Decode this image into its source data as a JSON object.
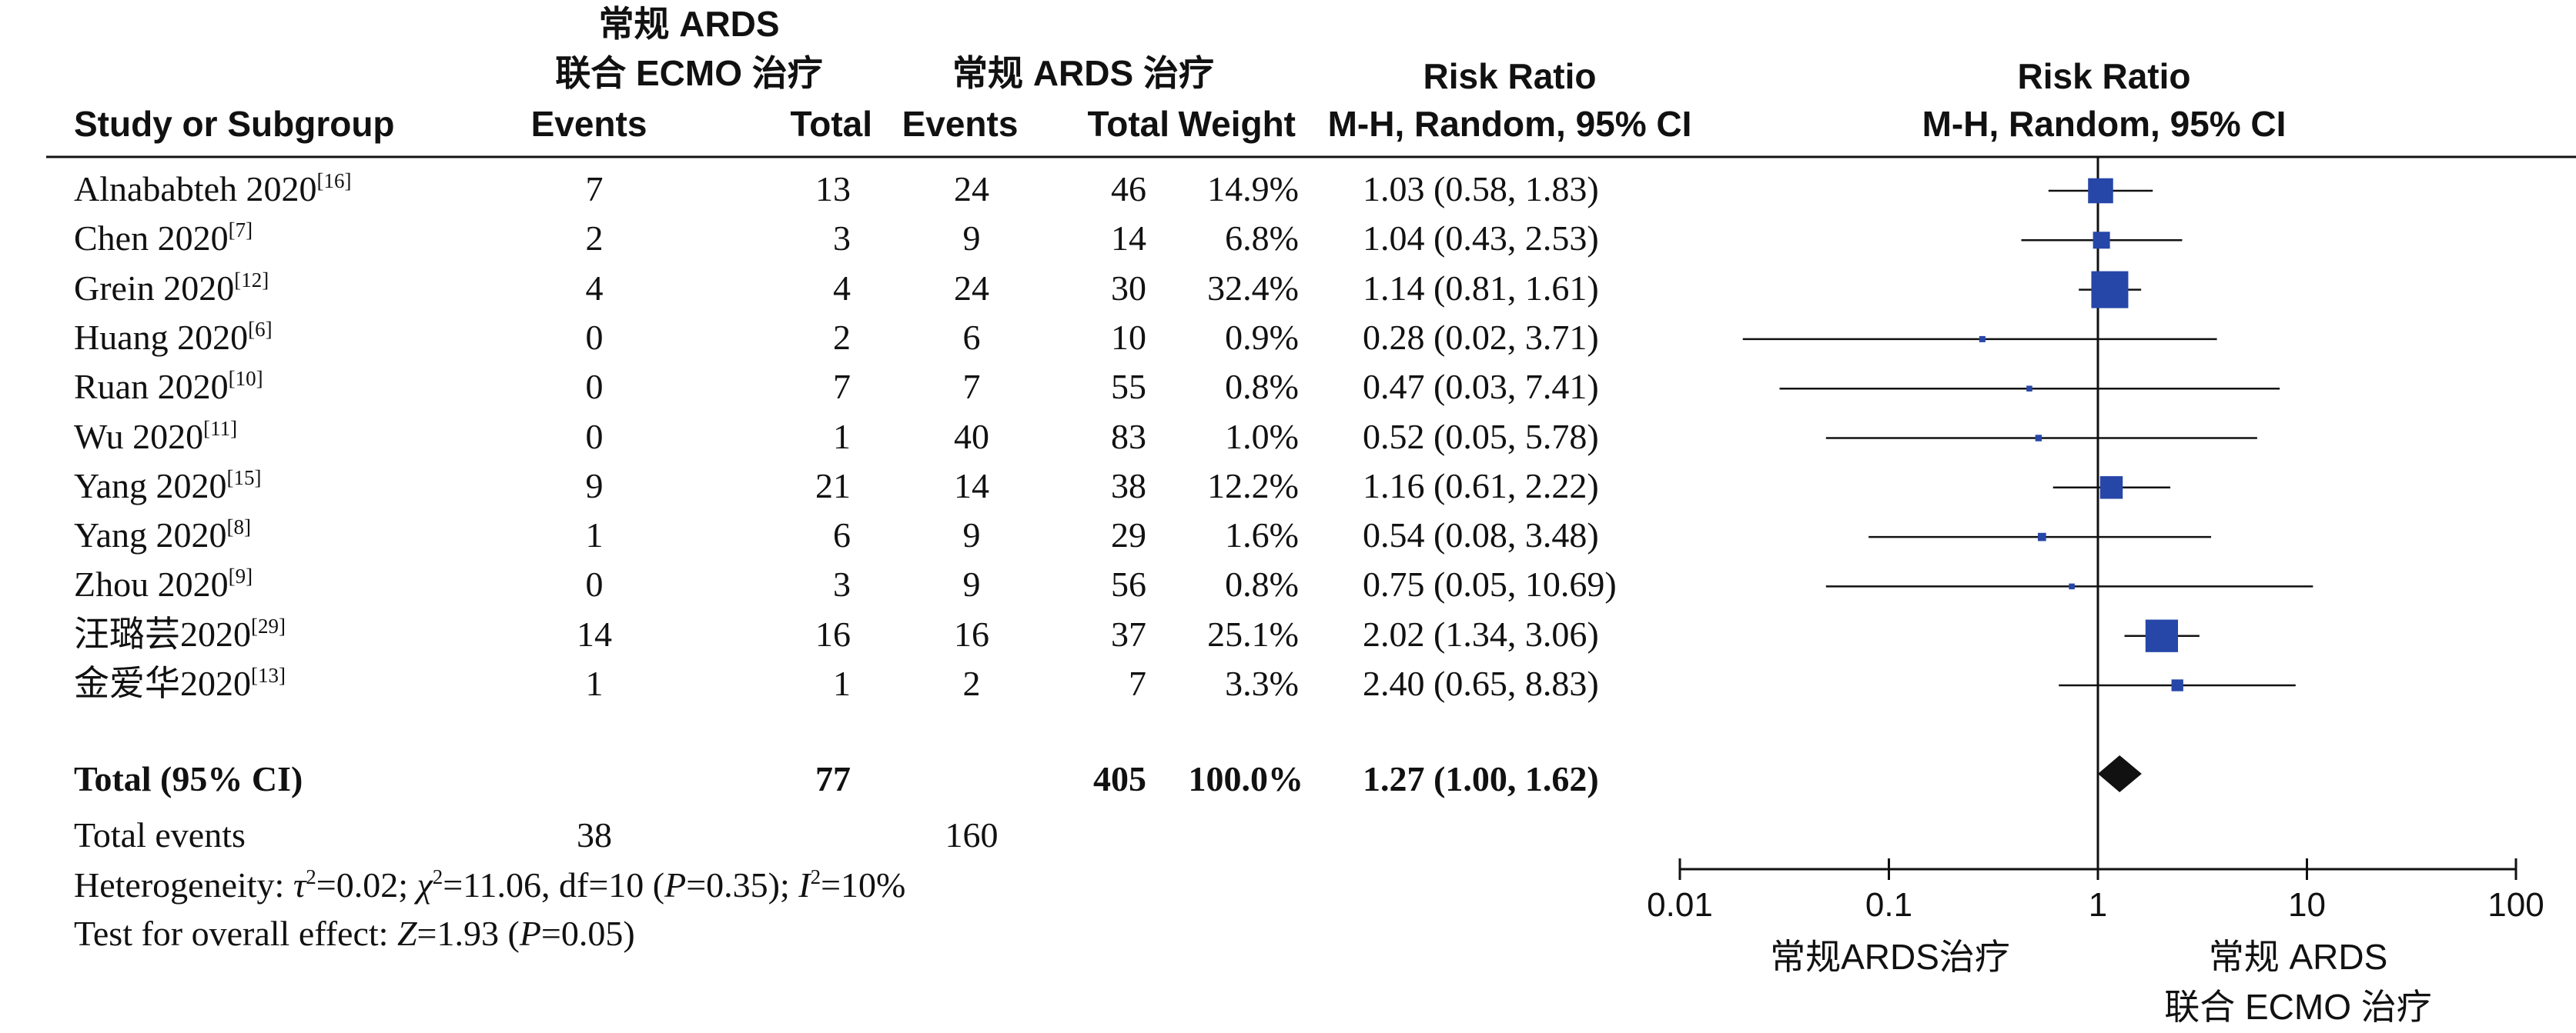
{
  "columns": {
    "study": "Study or Subgroup",
    "group1_title_1": "常规 ARDS",
    "group1_title_2": "联合 ECMO 治疗",
    "group2_title": "常规 ARDS 治疗",
    "events": "Events",
    "total": "Total",
    "weight": "Weight",
    "rr_title": "Risk Ratio",
    "rr_method": "M-H, Random, 95% CI"
  },
  "studies": [
    {
      "name": "Alnababteh 2020",
      "ref": "[16]",
      "e1": "7",
      "t1": "13",
      "e2": "24",
      "t2": "46",
      "weight": "14.9%",
      "ci_text": "1.03 (0.58, 1.83)"
    },
    {
      "name": "Chen 2020",
      "ref": "[7]",
      "e1": "2",
      "t1": "3",
      "e2": "9",
      "t2": "14",
      "weight": "6.8%",
      "ci_text": "1.04 (0.43, 2.53)"
    },
    {
      "name": "Grein 2020",
      "ref": "[12]",
      "e1": "4",
      "t1": "4",
      "e2": "24",
      "t2": "30",
      "weight": "32.4%",
      "ci_text": "1.14 (0.81, 1.61)"
    },
    {
      "name": "Huang 2020",
      "ref": "[6]",
      "e1": "0",
      "t1": "2",
      "e2": "6",
      "t2": "10",
      "weight": "0.9%",
      "ci_text": "0.28 (0.02, 3.71)"
    },
    {
      "name": "Ruan 2020",
      "ref": "[10]",
      "e1": "0",
      "t1": "7",
      "e2": "7",
      "t2": "55",
      "weight": "0.8%",
      "ci_text": "0.47 (0.03, 7.41)"
    },
    {
      "name": "Wu  2020",
      "ref": "[11]",
      "e1": "0",
      "t1": "1",
      "e2": "40",
      "t2": "83",
      "weight": "1.0%",
      "ci_text": "0.52 (0.05, 5.78)"
    },
    {
      "name": "Yang 2020",
      "ref": "[15]",
      "e1": "9",
      "t1": "21",
      "e2": "14",
      "t2": "38",
      "weight": "12.2%",
      "ci_text": "1.16 (0.61, 2.22)"
    },
    {
      "name": "Yang 2020",
      "ref": "[8]",
      "e1": "1",
      "t1": "6",
      "e2": "9",
      "t2": "29",
      "weight": "1.6%",
      "ci_text": "0.54 (0.08, 3.48)"
    },
    {
      "name": "Zhou 2020",
      "ref": "[9]",
      "e1": "0",
      "t1": "3",
      "e2": "9",
      "t2": "56",
      "weight": "0.8%",
      "ci_text": "0.75 (0.05, 10.69)"
    },
    {
      "name": "汪璐芸2020",
      "ref": "[29]",
      "e1": "14",
      "t1": "16",
      "e2": "16",
      "t2": "37",
      "weight": "25.1%",
      "ci_text": "2.02 (1.34, 3.06)"
    },
    {
      "name": "金爱华2020",
      "ref": "[13]",
      "e1": "1",
      "t1": "1",
      "e2": "2",
      "t2": "7",
      "weight": "3.3%",
      "ci_text": "2.40 (0.65, 8.83)"
    }
  ],
  "total": {
    "label": "Total (95% CI)",
    "t1": "77",
    "t2": "405",
    "weight": "100.0%",
    "ci_text": "1.27 (1.00, 1.62)"
  },
  "total_events": {
    "label": "Total events",
    "e1": "38",
    "e2": "160"
  },
  "heterogeneity": {
    "prefix": "Heterogeneity: ",
    "tau_sym": "τ",
    "tau_rest": "=0.02; ",
    "chi_sym": "χ",
    "chi_rest": "=11.06, df=10 (",
    "p_sym": "P",
    "p_rest": "=0.35); ",
    "i_sym": "I",
    "i_rest": "=10%"
  },
  "overall_effect": {
    "prefix": "Test for overall effect: ",
    "z_sym": "Z",
    "z_rest": "=1.93 (",
    "p_sym": "P",
    "p_rest": "=0.05)"
  },
  "favours": {
    "left": "常规ARDS治疗",
    "right_1": "常规 ARDS",
    "right_2": "联合 ECMO 治疗"
  },
  "colors": {
    "marker": "#2646a8",
    "diamond": "#111111",
    "line": "#111111"
  },
  "chart_data": {
    "type": "forest",
    "x_scale": "log",
    "xlim": [
      0.01,
      100
    ],
    "x_ticks": [
      "0.01",
      "0.1",
      "1",
      "10",
      "100"
    ],
    "x_tick_values": [
      0.01,
      0.1,
      1,
      10,
      100
    ],
    "reference_line": 1,
    "xlabel_left": "常规ARDS治疗",
    "xlabel_right": "常规 ARDS 联合 ECMO 治疗",
    "studies": [
      {
        "rr": 1.03,
        "lower": 0.58,
        "upper": 1.83,
        "weight": 14.9
      },
      {
        "rr": 1.04,
        "lower": 0.43,
        "upper": 2.53,
        "weight": 6.8
      },
      {
        "rr": 1.14,
        "lower": 0.81,
        "upper": 1.61,
        "weight": 32.4
      },
      {
        "rr": 0.28,
        "lower": 0.02,
        "upper": 3.71,
        "weight": 0.9
      },
      {
        "rr": 0.47,
        "lower": 0.03,
        "upper": 7.41,
        "weight": 0.8
      },
      {
        "rr": 0.52,
        "lower": 0.05,
        "upper": 5.78,
        "weight": 1.0
      },
      {
        "rr": 1.16,
        "lower": 0.61,
        "upper": 2.22,
        "weight": 12.2
      },
      {
        "rr": 0.54,
        "lower": 0.08,
        "upper": 3.48,
        "weight": 1.6
      },
      {
        "rr": 0.75,
        "lower": 0.05,
        "upper": 10.69,
        "weight": 0.8
      },
      {
        "rr": 2.02,
        "lower": 1.34,
        "upper": 3.06,
        "weight": 25.1
      },
      {
        "rr": 2.4,
        "lower": 0.65,
        "upper": 8.83,
        "weight": 3.3
      }
    ],
    "pooled": {
      "rr": 1.27,
      "lower": 1.0,
      "upper": 1.62
    }
  }
}
